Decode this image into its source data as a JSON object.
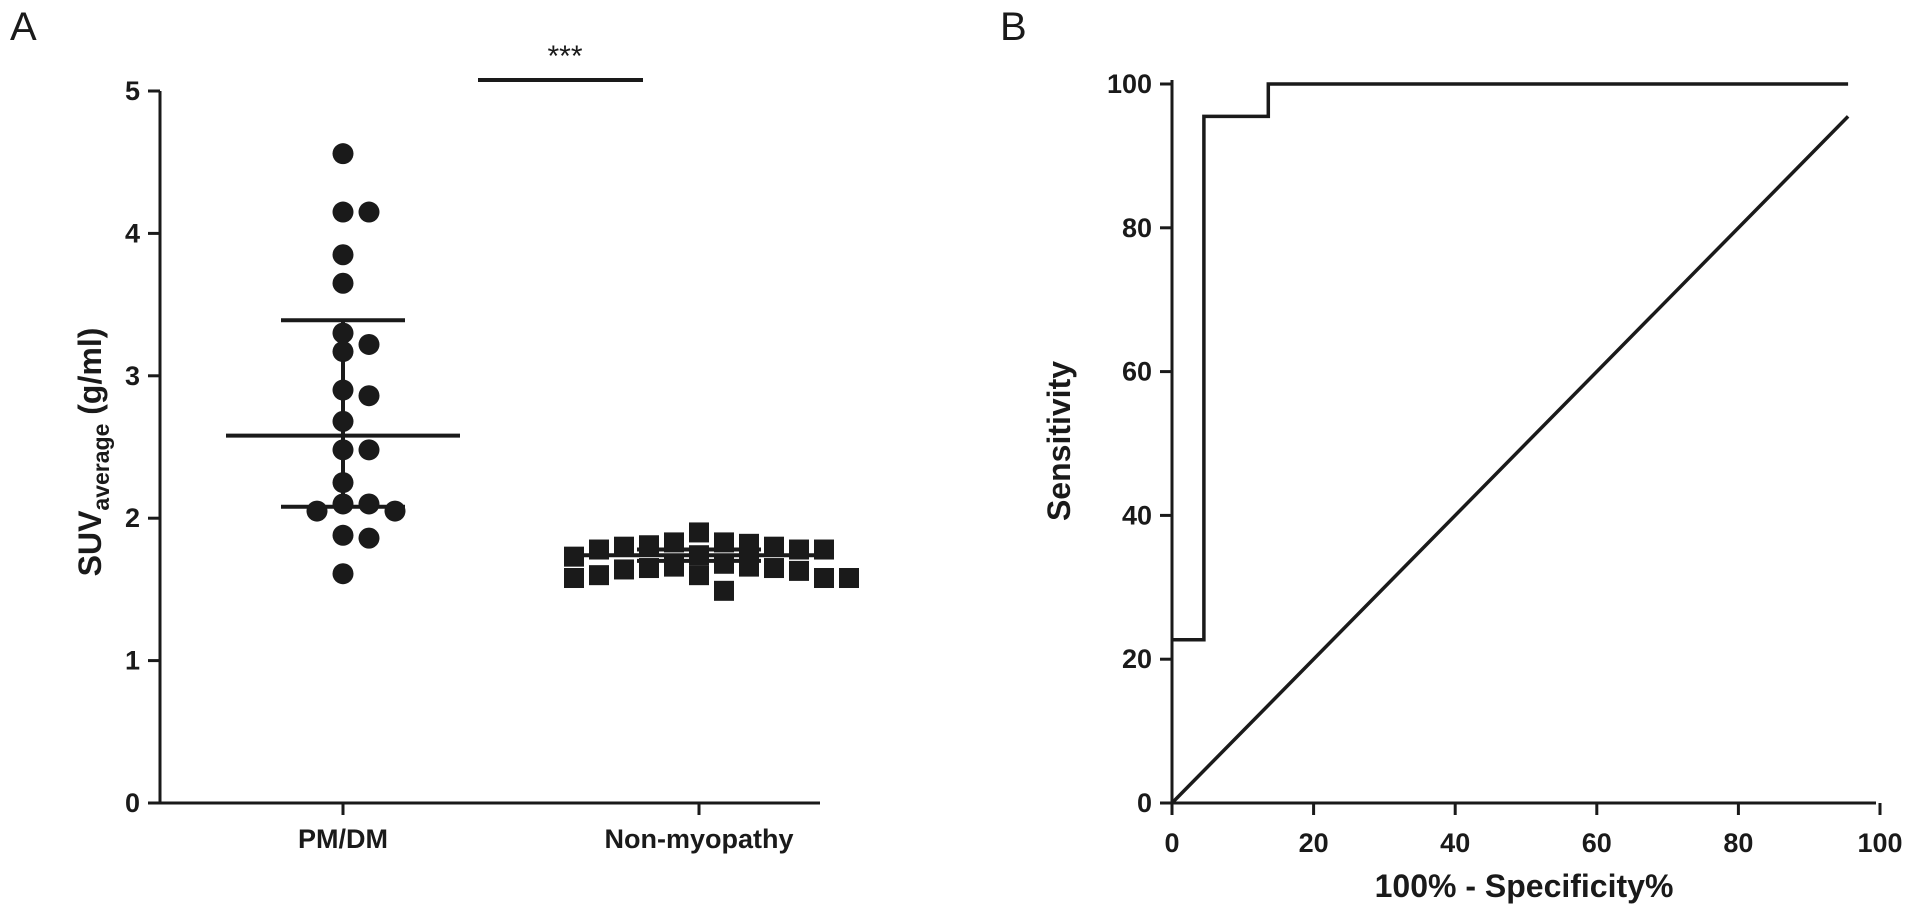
{
  "chart_data": [
    {
      "type": "scatter",
      "panel_label": "A",
      "ylabel_main": "SUV",
      "ylabel_sub": "average",
      "ylabel_unit": " (g/ml)",
      "ylim": [
        0,
        5
      ],
      "yticks": [
        "0",
        "1",
        "2",
        "3",
        "4",
        "5"
      ],
      "categories": [
        "PM/DM",
        "Non-myopathy"
      ],
      "significance": "***",
      "grid": false,
      "series": [
        {
          "marker": "circle",
          "mean": 2.58,
          "sd_upper": 3.39,
          "sd_lower": 2.08,
          "values": [
            4.56,
            4.15,
            4.15,
            3.85,
            3.65,
            3.3,
            3.22,
            3.17,
            2.9,
            2.86,
            2.68,
            2.48,
            2.48,
            2.25,
            2.1,
            2.1,
            2.05,
            2.05,
            1.88,
            1.86,
            1.61
          ]
        },
        {
          "marker": "square",
          "mean": 1.74,
          "sd_upper": 1.78,
          "sd_lower": 1.7,
          "values": [
            1.9,
            1.83,
            1.83,
            1.82,
            1.81,
            1.8,
            1.8,
            1.78,
            1.78,
            1.78,
            1.74,
            1.73,
            1.68,
            1.66,
            1.66,
            1.65,
            1.65,
            1.64,
            1.63,
            1.6,
            1.6,
            1.58,
            1.58,
            1.58,
            1.49
          ]
        }
      ]
    },
    {
      "type": "line",
      "panel_label": "B",
      "xlabel": "100% - Specificity%",
      "ylabel": "Sensitivity",
      "xlim": [
        0,
        100
      ],
      "ylim": [
        0,
        100
      ],
      "xticks": [
        "0",
        "20",
        "40",
        "60",
        "80",
        "100"
      ],
      "yticks": [
        "0",
        "20",
        "40",
        "60",
        "80",
        "100"
      ],
      "grid": false,
      "series": [
        {
          "x": [
            0,
            4.5,
            4.5,
            13.6,
            13.6,
            95.5
          ],
          "y": [
            22.7,
            22.7,
            95.5,
            95.5,
            100,
            100
          ]
        },
        {
          "x": [
            0,
            95.5
          ],
          "y": [
            0,
            95.5
          ]
        }
      ]
    }
  ]
}
